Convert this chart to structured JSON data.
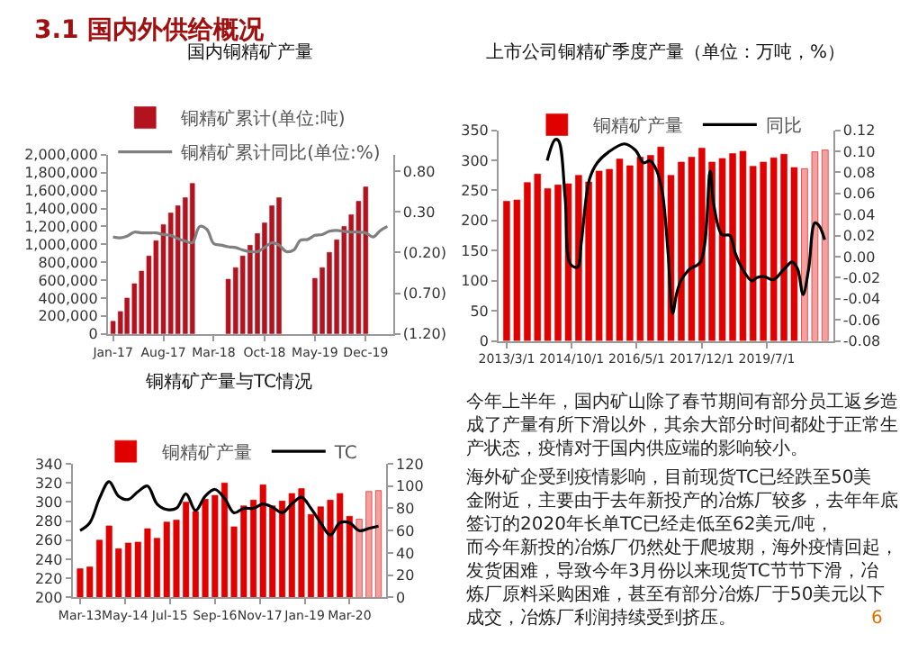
{
  "chart_data": [
    {
      "type": "other",
      "title": "3.1 国内外供给概况",
      "annotations": [
        "6"
      ]
    },
    {
      "type": "bar",
      "title": "国内铜精矿产量",
      "legend": "top",
      "x": [
        "2017-01",
        "2017-02",
        "2017-03",
        "2017-04",
        "2017-05",
        "2017-06",
        "2017-07",
        "2017-08",
        "2017-09",
        "2017-10",
        "2017-11",
        "2017-12",
        "2018-01",
        "2018-02",
        "2018-03",
        "2018-04",
        "2018-05",
        "2018-06",
        "2018-07",
        "2018-08",
        "2018-09",
        "2018-10",
        "2018-11",
        "2018-12",
        "2019-01",
        "2019-02",
        "2019-03",
        "2019-04",
        "2019-05",
        "2019-06",
        "2019-07",
        "2019-08",
        "2019-09",
        "2019-10",
        "2019-11",
        "2019-12",
        "2020-01",
        "2020-02",
        "2020-03"
      ],
      "xlim": [
        "2016-12-10",
        "2020-03-25"
      ],
      "xticks": [
        {
          "value": "2017-01-01",
          "label": "Jan-17"
        },
        {
          "value": "2017-08-01",
          "label": "Aug-17"
        },
        {
          "value": "2018-03-01",
          "label": "Mar-18"
        },
        {
          "value": "2018-10-01",
          "label": "Oct-18"
        },
        {
          "value": "2019-05-01",
          "label": "May-19"
        },
        {
          "value": "2019-12-01",
          "label": "Dec-19"
        }
      ],
      "ylim": [
        0,
        2000000
      ],
      "yticks": [
        0,
        {
          "value": 200000,
          "label": "200,000"
        },
        {
          "value": 400000,
          "label": "400,000"
        },
        {
          "value": 600000,
          "label": "600,000"
        },
        {
          "value": 800000,
          "label": "800,000"
        },
        {
          "value": 1000000,
          "label": "1,000,000"
        },
        {
          "value": 1200000,
          "label": "1,200,000"
        },
        {
          "value": 1400000,
          "label": "1,400,000"
        },
        {
          "value": 1600000,
          "label": "1,600,000"
        },
        {
          "value": 1800000,
          "label": "1,800,000"
        },
        {
          "value": 2000000,
          "label": "2,000,000"
        }
      ],
      "y2lim": [
        -1.2,
        1.0
      ],
      "y2ticks": [
        {
          "value": 0.8,
          "label": "0.80"
        },
        {
          "value": 0.3,
          "label": "0.30"
        },
        {
          "value": -0.2,
          "label": "(0.20)"
        },
        {
          "value": -0.7,
          "label": "(0.70)"
        },
        {
          "value": -1.2,
          "label": "(1.20)"
        }
      ],
      "series": [
        {
          "name": "铜精矿累计(单位:吨)",
          "type": "bar",
          "color": "#b3121f",
          "values": [
            140000,
            250000,
            400000,
            560000,
            700000,
            870000,
            1040000,
            1220000,
            1350000,
            1430000,
            1520000,
            1680000,
            null,
            null,
            null,
            null,
            610000,
            740000,
            870000,
            990000,
            1120000,
            1240000,
            1430000,
            1520000,
            null,
            null,
            null,
            null,
            620000,
            740000,
            910000,
            1050000,
            1200000,
            1330000,
            1480000,
            1640000,
            null,
            null,
            null
          ]
        },
        {
          "name": "铜精矿累计同比(单位:%)",
          "type": "line",
          "axis": "y2",
          "color": "#808080",
          "values": [
            -0.01,
            -0.02,
            0.0,
            0.05,
            0.04,
            0.04,
            0.04,
            0.02,
            0.01,
            -0.03,
            -0.06,
            -0.08,
            0.12,
            0.08,
            -0.09,
            -0.11,
            -0.13,
            -0.14,
            -0.17,
            -0.19,
            -0.19,
            -0.14,
            -0.08,
            -0.11,
            -0.19,
            -0.17,
            -0.05,
            -0.04,
            0.01,
            0.02,
            0.06,
            0.07,
            0.06,
            0.05,
            0.05,
            0.04,
            -0.01,
            0.07,
            0.12
          ]
        }
      ]
    },
    {
      "type": "bar",
      "title": "上市公司铜精矿季度产量（单位：万吨，%）",
      "legend": "top",
      "x": [
        "2013-03",
        "2013-06",
        "2013-09",
        "2013-12",
        "2014-03",
        "2014-06",
        "2014-09",
        "2014-12",
        "2015-03",
        "2015-06",
        "2015-09",
        "2015-12",
        "2016-03",
        "2016-06",
        "2016-09",
        "2016-12",
        "2017-03",
        "2017-06",
        "2017-09",
        "2017-12",
        "2018-03",
        "2018-06",
        "2018-09",
        "2018-12",
        "2019-03",
        "2019-06",
        "2019-09",
        "2019-12",
        "2020-03",
        "2020-06",
        "2020-09",
        "2020-12"
      ],
      "xlim": [
        "2012-12-20",
        "2021-02-10"
      ],
      "xticks": [
        {
          "value": "2013-03-01",
          "label": "2013/3/1"
        },
        {
          "value": "2014-10-01",
          "label": "2014/10/1"
        },
        {
          "value": "2016-05-01",
          "label": "2016/5/1"
        },
        {
          "value": "2017-12-01",
          "label": "2017/12/1"
        },
        {
          "value": "2019-07-01",
          "label": "2019/7/1"
        }
      ],
      "ylim": [
        0,
        350
      ],
      "yticks": [
        0,
        50,
        100,
        150,
        200,
        250,
        300,
        350
      ],
      "y2lim": [
        -0.08,
        0.12
      ],
      "y2ticks": [
        {
          "value": -0.08,
          "label": "-0.08"
        },
        {
          "value": -0.06,
          "label": "-0.06"
        },
        {
          "value": -0.04,
          "label": "-0.04"
        },
        {
          "value": -0.02,
          "label": "-0.02"
        },
        {
          "value": 0,
          "label": "0.00"
        },
        {
          "value": 0.02,
          "label": "0.02"
        },
        {
          "value": 0.04,
          "label": "0.04"
        },
        {
          "value": 0.06,
          "label": "0.06"
        },
        {
          "value": 0.08,
          "label": "0.08"
        },
        {
          "value": 0.1,
          "label": "0.10"
        },
        {
          "value": 0.12,
          "label": "0.12"
        }
      ],
      "series": [
        {
          "name": "铜精矿产量",
          "type": "bar",
          "color": "#e00000",
          "colors": [
            "#e00000",
            "#e00000",
            "#e00000",
            "#e00000",
            "#e00000",
            "#e00000",
            "#e00000",
            "#e00000",
            "#e00000",
            "#e00000",
            "#e00000",
            "#e00000",
            "#e00000",
            "#e00000",
            "#e00000",
            "#e00000",
            "#e00000",
            "#e00000",
            "#e00000",
            "#e00000",
            "#e00000",
            "#e00000",
            "#e00000",
            "#e00000",
            "#e00000",
            "#e00000",
            "#e00000",
            "#e00000",
            "#e00000",
            "#f2a0a0",
            "#f2a0a0",
            "#f2a0a0"
          ],
          "values": [
            232,
            234,
            263,
            277,
            253,
            259,
            261,
            275,
            264,
            282,
            285,
            302,
            291,
            305,
            308,
            322,
            275,
            297,
            305,
            320,
            297,
            303,
            311,
            315,
            290,
            297,
            304,
            310,
            288,
            286,
            314,
            317
          ]
        },
        {
          "name": "同比",
          "type": "line",
          "axis": "y2",
          "color": "#000000",
          "x": [
            "2014-02-25",
            "2014-05-07",
            "2014-06-06",
            "2014-08-04",
            "2014-09-19",
            "2014-11-22",
            "2014-12-25",
            "2015-03-07",
            "2015-05-16",
            "2015-08-22",
            "2016-01-13",
            "2016-04-19",
            "2016-07-01",
            "2016-08-28",
            "2016-10-28",
            "2016-12-16",
            "2017-02-04",
            "2017-03-16",
            "2017-04-19",
            "2017-05-28",
            "2017-08-13",
            "2017-11-19",
            "2018-02-13",
            "2018-03-16",
            "2018-05-28",
            "2018-08-07",
            "2018-09-25",
            "2018-11-28",
            "2019-02-19",
            "2019-04-04",
            "2019-06-07",
            "2019-08-28",
            "2019-12-01",
            "2020-02-12",
            "2020-04-01",
            "2020-05-19",
            "2020-07-07",
            "2020-09-01",
            "2020-10-10",
            "2020-11-27"
          ],
          "values": [
            0.091,
            0.111,
            0.11,
            0.055,
            -0.007,
            -0.01,
            0.013,
            0.073,
            0.089,
            0.099,
            0.107,
            0.101,
            0.089,
            0.091,
            0.081,
            0.06,
            0.003,
            -0.054,
            -0.036,
            -0.023,
            -0.012,
            -0.005,
            0.081,
            0.05,
            0.021,
            0.02,
            0.003,
            -0.012,
            -0.023,
            -0.02,
            -0.019,
            -0.022,
            -0.012,
            -0.005,
            -0.012,
            -0.036,
            -0.012,
            0.032,
            0.029,
            0.016
          ]
        }
      ]
    },
    {
      "type": "bar",
      "title": "铜精矿产量与TC情况",
      "legend": "top",
      "x": [
        "2013-03",
        "2013-06",
        "2013-09",
        "2013-12",
        "2014-03",
        "2014-06",
        "2014-09",
        "2014-12",
        "2015-03",
        "2015-06",
        "2015-09",
        "2015-12",
        "2016-03",
        "2016-06",
        "2016-09",
        "2016-12",
        "2017-03",
        "2017-06",
        "2017-09",
        "2017-12",
        "2018-03",
        "2018-06",
        "2018-09",
        "2018-12",
        "2019-03",
        "2019-06",
        "2019-09",
        "2019-12",
        "2020-03",
        "2020-06",
        "2020-09",
        "2020-12"
      ],
      "xlim": [
        "2012-12-20",
        "2021-02-10"
      ],
      "xticks": [
        {
          "value": "2013-03-01",
          "label": "Mar-13"
        },
        {
          "value": "2014-05-01",
          "label": "May-14"
        },
        {
          "value": "2015-07-01",
          "label": "Jul-15"
        },
        {
          "value": "2016-09-01",
          "label": "Sep-16"
        },
        {
          "value": "2017-11-01",
          "label": "Nov-17"
        },
        {
          "value": "2019-01-01",
          "label": "Jan-19"
        },
        {
          "value": "2020-03-01",
          "label": "Mar-20"
        }
      ],
      "ylim": [
        200,
        340
      ],
      "yticks": [
        200,
        220,
        240,
        260,
        280,
        300,
        320,
        340
      ],
      "y2lim": [
        0,
        120
      ],
      "y2ticks": [
        0,
        20,
        40,
        60,
        80,
        100,
        120
      ],
      "series": [
        {
          "name": "铜精矿产量",
          "type": "bar",
          "color": "#e00000",
          "colors": [
            "#e00000",
            "#e00000",
            "#e00000",
            "#e00000",
            "#e00000",
            "#e00000",
            "#e00000",
            "#e00000",
            "#e00000",
            "#e00000",
            "#e00000",
            "#e00000",
            "#e00000",
            "#e00000",
            "#e00000",
            "#e00000",
            "#e00000",
            "#e00000",
            "#e00000",
            "#e00000",
            "#e00000",
            "#e00000",
            "#e00000",
            "#e00000",
            "#e00000",
            "#e00000",
            "#e00000",
            "#e00000",
            "#e00000",
            "#f2a0a0",
            "#f2a0a0",
            "#f2a0a0"
          ],
          "values": [
            230,
            232,
            260,
            275,
            251,
            257,
            258,
            272,
            262,
            279,
            281,
            300,
            290,
            303,
            307,
            320,
            274,
            296,
            302,
            318,
            296,
            301,
            309,
            314,
            287,
            295,
            302,
            309,
            285,
            282,
            311,
            312
          ]
        },
        {
          "name": "TC",
          "type": "line",
          "axis": "y2",
          "color": "#000000",
          "values": [
            60,
            67,
            89,
            104,
            91,
            88,
            95,
            100,
            84,
            79,
            80,
            93,
            78,
            91,
            97,
            89,
            76,
            80,
            80,
            84,
            81,
            76,
            84,
            90,
            80,
            67,
            56,
            67,
            67,
            60,
            62,
            64
          ]
        }
      ]
    },
    {
      "type": "other",
      "annotations": [
        "今年上半年，国内矿山除了春节期间有部分员工返乡造成了产量有所下滑以外，其余大部分时间都处于正常生产状态，疫情对于国内供应端的影响较小。",
        "海外矿企受到疫情影响，目前现货TC已经跌至50美金附近，主要由于去年新投产的冶炼厂较多，去年年底签订的2020年长单TC已经走低至62美元/吨，而今年新投的冶炼厂仍然处于爬坡期，海外疫情回起，发货困难，导致今年3月份以来现货TC节节下滑，冶炼厂原料采购困难，甚至有部分冶炼厂于50美元以下成交，冶炼厂利润持续受到挤压。"
      ]
    }
  ]
}
